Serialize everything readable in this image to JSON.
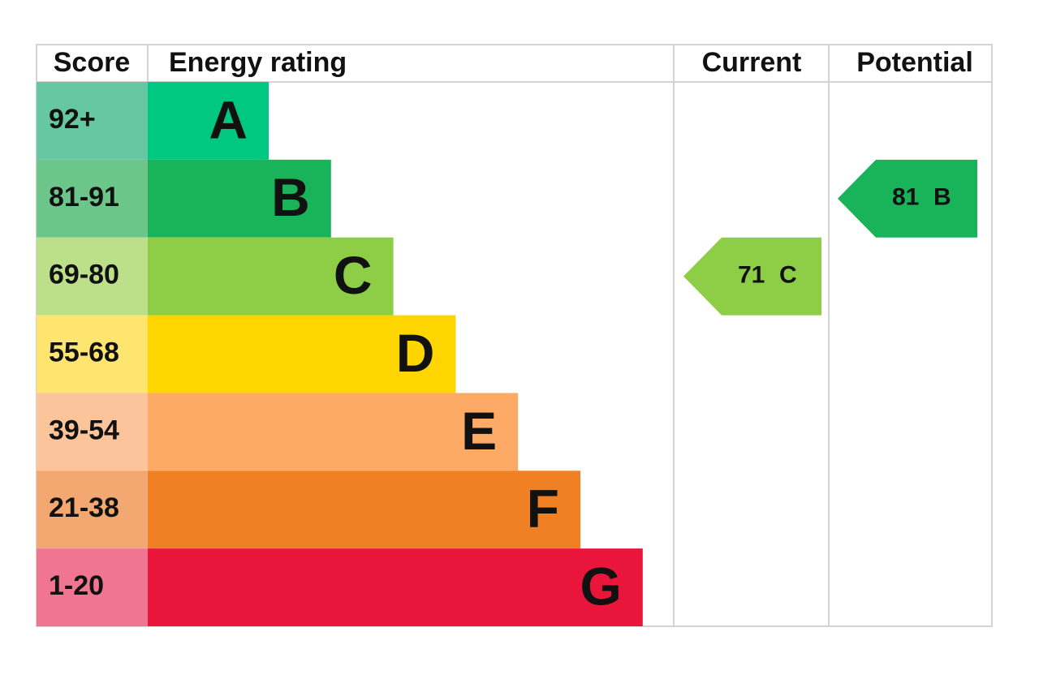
{
  "headers": {
    "score": "Score",
    "rating": "Energy rating",
    "current": "Current",
    "potential": "Potential"
  },
  "bands": [
    {
      "score": "92+",
      "letter": "A",
      "color": "#00c781",
      "score_color": "#66c7a4"
    },
    {
      "score": "81-91",
      "letter": "B",
      "color": "#19b459",
      "score_color": "#6cc68a"
    },
    {
      "score": "69-80",
      "letter": "C",
      "color": "#8dce46",
      "score_color": "#bce08a"
    },
    {
      "score": "55-68",
      "letter": "D",
      "color": "#ffd500",
      "score_color": "#fde56f"
    },
    {
      "score": "39-54",
      "letter": "E",
      "color": "#fcaa65",
      "score_color": "#fbc49b"
    },
    {
      "score": "21-38",
      "letter": "F",
      "color": "#ef8023",
      "score_color": "#f2a870"
    },
    {
      "score": "1-20",
      "letter": "G",
      "color": "#e9153b",
      "score_color": "#ef7590"
    }
  ],
  "current": {
    "value": 71,
    "letter": "C"
  },
  "potential": {
    "value": 81,
    "letter": "B"
  }
}
